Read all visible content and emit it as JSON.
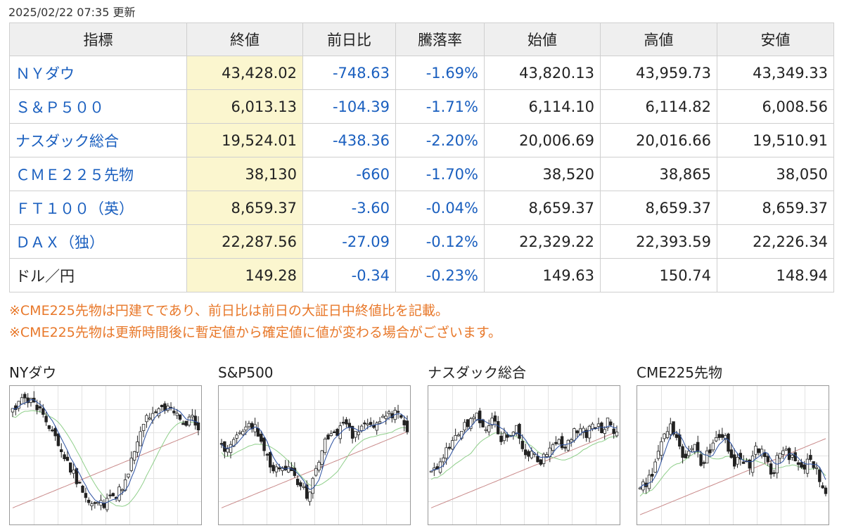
{
  "updated": "2025/02/22 07:35 更新",
  "table": {
    "headers": [
      "指標",
      "終値",
      "前日比",
      "騰落率",
      "始値",
      "高値",
      "安値"
    ],
    "rows": [
      {
        "name": "ＮＹダウ",
        "link": true,
        "close": "43,428.02",
        "change": "-748.63",
        "rate": "-1.69%",
        "open": "43,820.13",
        "high": "43,959.73",
        "low": "43,349.33"
      },
      {
        "name": "Ｓ＆Ｐ５００",
        "link": true,
        "close": "6,013.13",
        "change": "-104.39",
        "rate": "-1.71%",
        "open": "6,114.10",
        "high": "6,114.82",
        "low": "6,008.56"
      },
      {
        "name": "ナスダック総合",
        "link": true,
        "close": "19,524.01",
        "change": "-438.36",
        "rate": "-2.20%",
        "open": "20,006.69",
        "high": "20,016.66",
        "low": "19,510.91"
      },
      {
        "name": "ＣＭＥ２２５先物",
        "link": true,
        "close": "38,130",
        "change": "-660",
        "rate": "-1.70%",
        "open": "38,520",
        "high": "38,865",
        "low": "38,050"
      },
      {
        "name": "ＦＴ１００（英）",
        "link": true,
        "close": "8,659.37",
        "change": "-3.60",
        "rate": "-0.04%",
        "open": "8,659.37",
        "high": "8,659.37",
        "low": "8,659.37"
      },
      {
        "name": "ＤＡＸ（独）",
        "link": true,
        "close": "22,287.56",
        "change": "-27.09",
        "rate": "-0.12%",
        "open": "22,329.22",
        "high": "22,393.59",
        "low": "22,226.34"
      },
      {
        "name": "ドル／円",
        "link": false,
        "close": "149.28",
        "change": "-0.34",
        "rate": "-0.23%",
        "open": "149.63",
        "high": "150.74",
        "low": "148.94"
      }
    ]
  },
  "notes": [
    "※CME225先物は円建てであり、前日比は前日の大証日中終値比を記載。",
    "※CME225先物は更新時間後に暫定値から確定値に値が変わる場合がございます。"
  ],
  "charts": [
    {
      "title": "NYダウ",
      "seed": 11,
      "shape": "dow"
    },
    {
      "title": "S&P500",
      "seed": 23,
      "shape": "spx"
    },
    {
      "title": "ナスダック総合",
      "seed": 37,
      "shape": "nasdaq"
    },
    {
      "title": "CME225先物",
      "seed": 53,
      "shape": "cme"
    }
  ],
  "colors": {
    "link": "#1a5fbf",
    "negative": "#1a5fbf",
    "note": "#e8782a",
    "close_bg": "#fbf6cf",
    "header_bg": "#efefef",
    "ma_short": "#2a4fa0",
    "ma_mid": "#8fcf8a",
    "ma_long": "#c98a8a"
  }
}
